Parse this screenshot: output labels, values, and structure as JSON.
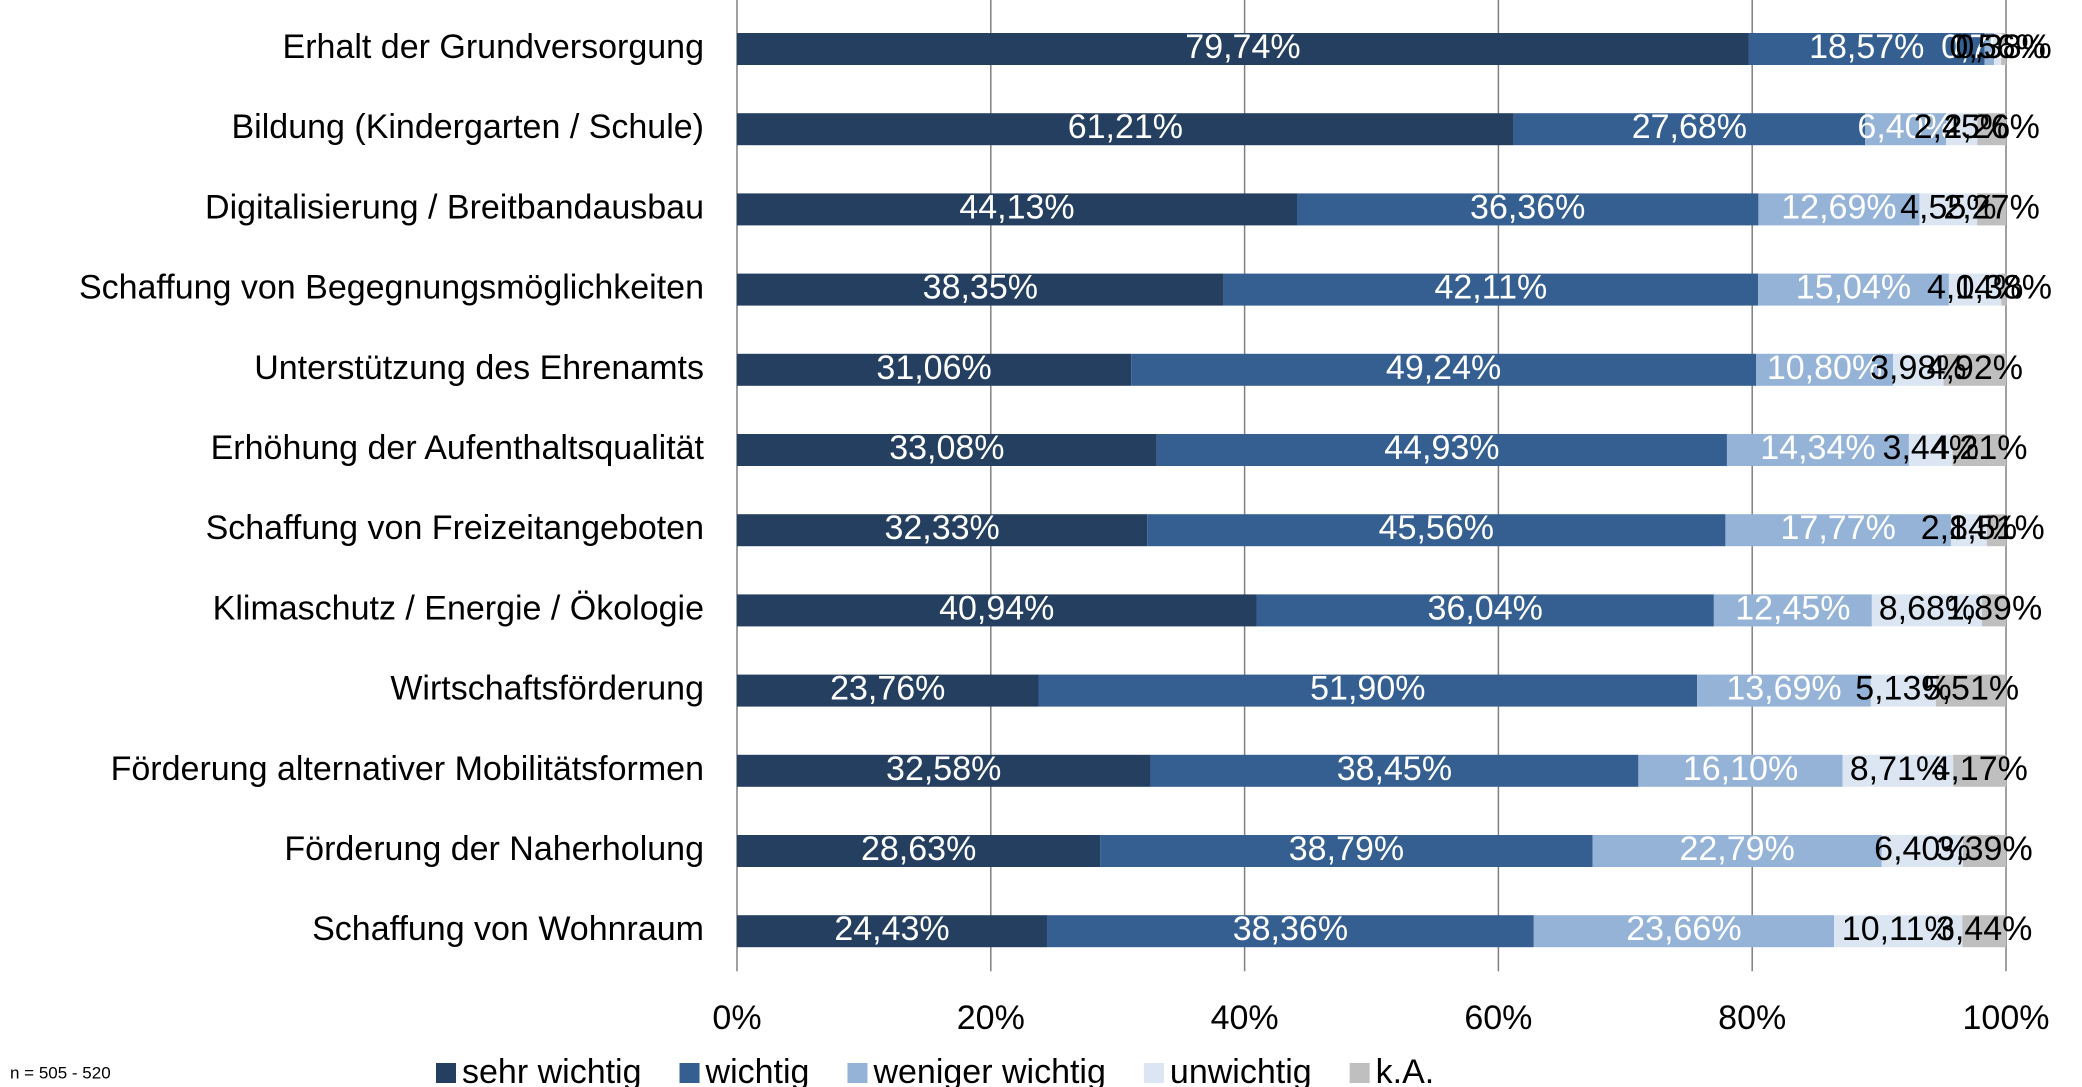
{
  "chart_data": {
    "type": "stacked_bar_horizontal",
    "note": "n = 505 - 520",
    "categories": [
      "Erhalt der Grundversorgung",
      "Bildung (Kindergarten / Schule)",
      "Digitalisierung / Breitbandausbau",
      "Schaffung von Begegnungsmöglichkeiten",
      "Unterstützung des Ehrenamts",
      "Erhöhung der Aufenthaltsqualität",
      "Schaffung von Freizeitangeboten",
      "Klimaschutz / Energie / Ökologie",
      "Wirtschaftsförderung",
      "Förderung alternativer Mobilitätsformen",
      "Förderung der Naherholung",
      "Schaffung von Wohnraum"
    ],
    "series": [
      {
        "name": "sehr wichtig",
        "color": "#243f60",
        "label_color": "#ffffff",
        "values": [
          79.74,
          61.21,
          44.13,
          38.35,
          31.06,
          33.08,
          32.33,
          40.94,
          23.76,
          32.58,
          28.63,
          24.43
        ],
        "value_labels": [
          "79,74%",
          "61,21%",
          "44,13%",
          "38,35%",
          "31,06%",
          "33,08%",
          "32,33%",
          "40,94%",
          "23,76%",
          "32,58%",
          "28,63%",
          "24,43%"
        ]
      },
      {
        "name": "wichtig",
        "color": "#355f91",
        "label_color": "#ffffff",
        "values": [
          18.57,
          27.68,
          36.36,
          42.11,
          49.24,
          44.93,
          45.56,
          36.04,
          51.9,
          38.45,
          38.79,
          38.36
        ],
        "value_labels": [
          "18,57%",
          "27,68%",
          "36,36%",
          "42,11%",
          "49,24%",
          "44,93%",
          "45,56%",
          "36,04%",
          "51,90%",
          "38,45%",
          "38,79%",
          "38,36%"
        ]
      },
      {
        "name": "weniger wichtig",
        "color": "#95b3d7",
        "label_color": "#ffffff",
        "values": [
          0.75,
          6.4,
          12.69,
          15.04,
          10.8,
          14.34,
          17.77,
          12.45,
          13.69,
          16.1,
          22.79,
          23.66
        ],
        "value_labels": [
          "0,75%",
          "6,40%",
          "12,69%",
          "15,04%",
          "10,80%",
          "14,34%",
          "17,77%",
          "12,45%",
          "13,69%",
          "16,10%",
          "22,79%",
          "23,66%"
        ]
      },
      {
        "name": "unwichtig",
        "color": "#dce6f2",
        "label_color": "#000000",
        "values": [
          0.56,
          2.45,
          4.55,
          4.14,
          3.98,
          3.44,
          2.84,
          8.68,
          5.13,
          8.71,
          6.4,
          10.11
        ],
        "value_labels": [
          "0,56%",
          "2,45%",
          "4,55%",
          "4,14%",
          "3,98%",
          "3,44%",
          "2,84%",
          "8,68%",
          "5,13%",
          "8,71%",
          "6,40%",
          "10,11%"
        ]
      },
      {
        "name": "k.A.",
        "color": "#bfbfbf",
        "label_color": "#000000",
        "values": [
          0.38,
          2.26,
          2.27,
          0.38,
          4.92,
          4.21,
          1.51,
          1.89,
          5.51,
          4.17,
          3.39,
          3.44
        ],
        "value_labels": [
          "0,38%",
          "2,26%",
          "2,27%",
          "0,38%",
          "4,92%",
          "4,21%",
          "1,51%",
          "1,89%",
          "5,51%",
          "4,17%",
          "3,39%",
          "3,44%"
        ]
      }
    ],
    "xlim": [
      0,
      100
    ],
    "xticks": [
      {
        "value": 0,
        "label": "0%"
      },
      {
        "value": 20,
        "label": "20%"
      },
      {
        "value": 40,
        "label": "40%"
      },
      {
        "value": 60,
        "label": "60%"
      },
      {
        "value": 80,
        "label": "80%"
      },
      {
        "value": 100,
        "label": "100%"
      }
    ],
    "grid": true,
    "legend": "bottom"
  }
}
